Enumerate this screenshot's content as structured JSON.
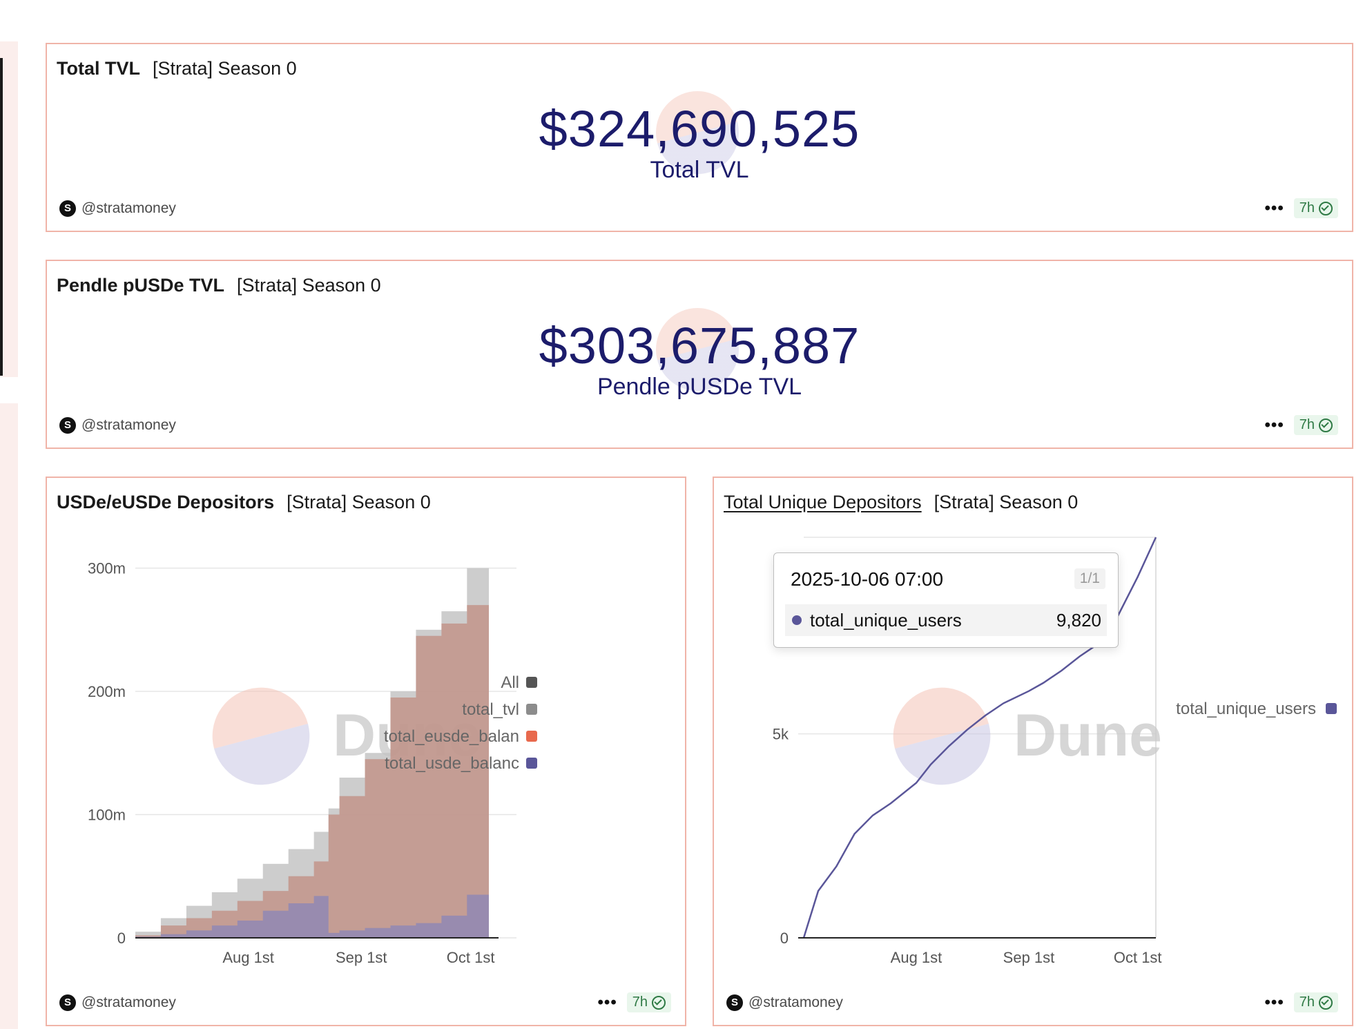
{
  "owner": "@stratamoney",
  "more_label": "•••",
  "cards": {
    "tvl": {
      "title": "Total TVL",
      "subtitle": "[Strata] Season 0",
      "value": "$324,690,525",
      "label": "Total TVL",
      "age": "7h"
    },
    "pendle": {
      "title": "Pendle pUSDe TVL",
      "subtitle": "[Strata] Season 0",
      "value": "$303,675,887",
      "label": "Pendle pUSDe TVL",
      "age": "7h"
    },
    "depositors": {
      "title": "USDe/eUSDe Depositors",
      "subtitle": "[Strata] Season 0",
      "age": "7h",
      "watermark": "Dune"
    },
    "unique": {
      "title": "Total Unique Depositors",
      "subtitle": "[Strata] Season 0",
      "age": "7h",
      "watermark": "Dune"
    }
  },
  "tooltip": {
    "date": "2025-10-06 07:00",
    "page": "1/1",
    "series": "total_unique_users",
    "value": "9,820"
  },
  "colors": {
    "accent_border": "#f0b4a8",
    "counter_text": "#1c1c6b",
    "tvl_gray": "#c4c4c4",
    "eusde": "#c08c80",
    "usde": "#8a86b8",
    "line": "#5a5699",
    "badge_green": "#2f7a45"
  },
  "chart_data": [
    {
      "type": "area",
      "name": "USDe/eUSDe Depositors",
      "x_ticks": [
        "Aug 1st",
        "Sep 1st",
        "Oct 1st"
      ],
      "y_ticks": [
        "0",
        "100m",
        "200m",
        "300m"
      ],
      "ylim": [
        0,
        325000000
      ],
      "legend": [
        "All",
        "total_tvl",
        "total_eusde_balan",
        "total_usde_balanc"
      ],
      "legend_colors": [
        "#555555",
        "#8c8c8c",
        "#e8694d",
        "#5a5699"
      ],
      "legend_placement": "right",
      "x": [
        "2025-07-01",
        "2025-07-08",
        "2025-07-15",
        "2025-07-22",
        "2025-07-29",
        "2025-08-05",
        "2025-08-12",
        "2025-08-19",
        "2025-08-23",
        "2025-08-26",
        "2025-09-02",
        "2025-09-09",
        "2025-09-16",
        "2025-09-23",
        "2025-09-30",
        "2025-10-06"
      ],
      "series": [
        {
          "name": "total_tvl",
          "values": [
            5000000,
            16000000,
            26000000,
            37000000,
            48000000,
            60000000,
            72000000,
            86000000,
            105000000,
            130000000,
            150000000,
            200000000,
            250000000,
            265000000,
            300000000,
            325000000
          ]
        },
        {
          "name": "total_eusde_balance",
          "values": [
            2000000,
            10000000,
            16000000,
            22000000,
            30000000,
            38000000,
            50000000,
            62000000,
            100000000,
            115000000,
            145000000,
            195000000,
            245000000,
            255000000,
            270000000,
            275000000
          ]
        },
        {
          "name": "total_usde_balance",
          "values": [
            1000000,
            3000000,
            6000000,
            10000000,
            14000000,
            22000000,
            28000000,
            34000000,
            4000000,
            6000000,
            8000000,
            10000000,
            12000000,
            18000000,
            35000000,
            48000000
          ]
        }
      ]
    },
    {
      "type": "line",
      "name": "Total Unique Depositors",
      "x_ticks": [
        "Aug 1st",
        "Sep 1st",
        "Oct 1st"
      ],
      "y_ticks": [
        "0",
        "5k"
      ],
      "ylim": [
        0,
        9820
      ],
      "legend": [
        "total_unique_users"
      ],
      "legend_placement": "right",
      "x": [
        "2025-07-01",
        "2025-07-05",
        "2025-07-10",
        "2025-07-15",
        "2025-07-20",
        "2025-07-25",
        "2025-08-01",
        "2025-08-05",
        "2025-08-10",
        "2025-08-15",
        "2025-08-20",
        "2025-08-25",
        "2025-09-01",
        "2025-09-05",
        "2025-09-10",
        "2025-09-15",
        "2025-09-20",
        "2025-09-25",
        "2025-10-01",
        "2025-10-06"
      ],
      "series": [
        {
          "name": "total_unique_users",
          "values": [
            0,
            1150,
            1750,
            2550,
            3000,
            3300,
            3800,
            4250,
            4700,
            5100,
            5450,
            5750,
            6050,
            6250,
            6550,
            6900,
            7200,
            7800,
            8850,
            9820
          ]
        }
      ]
    }
  ]
}
